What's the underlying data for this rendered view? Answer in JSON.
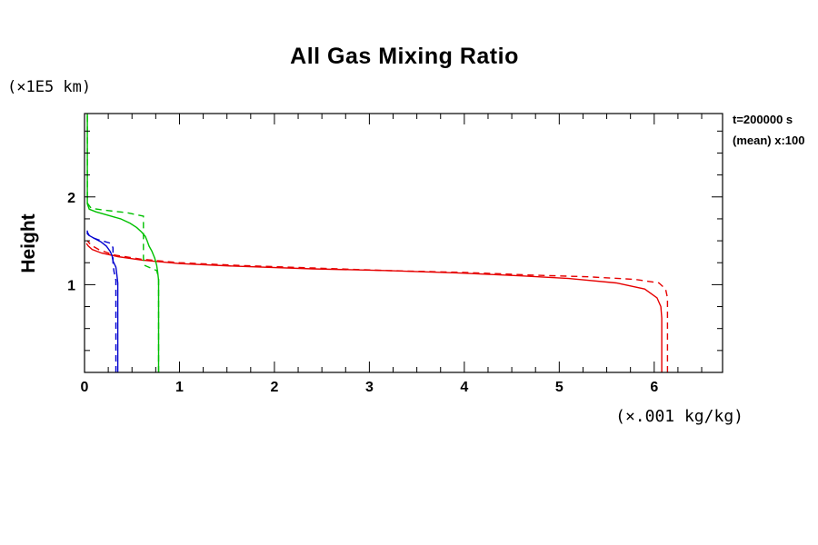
{
  "title": "All Gas Mixing Ratio",
  "annotations": {
    "time": "t=200000 s",
    "mean": "(mean) x:100"
  },
  "y_axis": {
    "label": "Height",
    "unit": "(×1E5 km)"
  },
  "x_axis": {
    "unit": "(×.001 kg/kg)"
  },
  "chart_data": {
    "type": "line",
    "title": "All Gas Mixing Ratio",
    "xlabel": "(×.001 kg/kg)",
    "ylabel": "Height (×1E5 km)",
    "xlim": [
      0,
      6.72
    ],
    "ylim": [
      0,
      2.95
    ],
    "x_ticks": [
      0,
      1,
      2,
      3,
      4,
      5,
      6
    ],
    "y_ticks": [
      1,
      2
    ],
    "minor_tick_step": 0.25,
    "grid": false,
    "legend_position": "none",
    "colors": {
      "gas1": "#e60000",
      "gas2": "#00c000",
      "gas3": "#0000d0"
    },
    "series": [
      {
        "name": "gas1-red-solid",
        "color": "#e60000",
        "style": "solid",
        "points": [
          [
            6.08,
            0
          ],
          [
            6.08,
            0.62
          ],
          [
            6.07,
            0.75
          ],
          [
            6.03,
            0.85
          ],
          [
            5.9,
            0.95
          ],
          [
            5.6,
            1.02
          ],
          [
            5.1,
            1.07
          ],
          [
            4.6,
            1.1
          ],
          [
            4.0,
            1.13
          ],
          [
            3.2,
            1.16
          ],
          [
            2.4,
            1.18
          ],
          [
            1.6,
            1.21
          ],
          [
            1.0,
            1.24
          ],
          [
            0.6,
            1.28
          ],
          [
            0.35,
            1.32
          ],
          [
            0.18,
            1.36
          ],
          [
            0.08,
            1.4
          ],
          [
            0.04,
            1.44
          ],
          [
            0.02,
            1.47
          ]
        ]
      },
      {
        "name": "gas1-red-dashed",
        "color": "#e60000",
        "style": "dashed",
        "points": [
          [
            6.14,
            0
          ],
          [
            6.14,
            0.85
          ],
          [
            6.12,
            0.95
          ],
          [
            6.05,
            1.02
          ],
          [
            5.8,
            1.06
          ],
          [
            5.3,
            1.09
          ],
          [
            4.7,
            1.11
          ],
          [
            4.0,
            1.14
          ],
          [
            3.2,
            1.16
          ],
          [
            2.4,
            1.19
          ],
          [
            1.6,
            1.22
          ],
          [
            1.0,
            1.25
          ],
          [
            0.6,
            1.29
          ],
          [
            0.3,
            1.34
          ],
          [
            0.15,
            1.4
          ],
          [
            0.07,
            1.45
          ],
          [
            0.03,
            1.5
          ]
        ]
      },
      {
        "name": "gas2-green-solid",
        "color": "#00c000",
        "style": "solid",
        "points": [
          [
            0.78,
            0
          ],
          [
            0.78,
            1.05
          ],
          [
            0.77,
            1.15
          ],
          [
            0.76,
            1.22
          ],
          [
            0.74,
            1.3
          ],
          [
            0.71,
            1.38
          ],
          [
            0.68,
            1.44
          ],
          [
            0.66,
            1.5
          ],
          [
            0.64,
            1.55
          ],
          [
            0.6,
            1.6
          ],
          [
            0.55,
            1.65
          ],
          [
            0.48,
            1.7
          ],
          [
            0.38,
            1.75
          ],
          [
            0.25,
            1.79
          ],
          [
            0.12,
            1.83
          ],
          [
            0.05,
            1.86
          ],
          [
            0.03,
            1.92
          ],
          [
            0.03,
            2.95
          ]
        ]
      },
      {
        "name": "gas2-green-dashed",
        "color": "#00c000",
        "style": "dashed",
        "points": [
          [
            0.78,
            0
          ],
          [
            0.78,
            1.08
          ],
          [
            0.76,
            1.16
          ],
          [
            0.63,
            1.22
          ],
          [
            0.62,
            1.3
          ],
          [
            0.62,
            1.78
          ],
          [
            0.45,
            1.82
          ],
          [
            0.2,
            1.85
          ],
          [
            0.07,
            1.87
          ],
          [
            0.03,
            1.93
          ],
          [
            0.03,
            2.95
          ]
        ]
      },
      {
        "name": "gas3-blue-solid",
        "color": "#0000d0",
        "style": "solid",
        "points": [
          [
            0.35,
            0
          ],
          [
            0.35,
            1.02
          ],
          [
            0.34,
            1.12
          ],
          [
            0.33,
            1.2
          ],
          [
            0.3,
            1.27
          ],
          [
            0.29,
            1.33
          ],
          [
            0.27,
            1.38
          ],
          [
            0.23,
            1.44
          ],
          [
            0.17,
            1.49
          ],
          [
            0.1,
            1.53
          ],
          [
            0.05,
            1.56
          ],
          [
            0.03,
            1.6
          ]
        ]
      },
      {
        "name": "gas3-blue-dashed",
        "color": "#0000d0",
        "style": "dashed",
        "points": [
          [
            0.33,
            0
          ],
          [
            0.33,
            1.05
          ],
          [
            0.31,
            1.15
          ],
          [
            0.3,
            1.25
          ],
          [
            0.3,
            1.42
          ],
          [
            0.28,
            1.47
          ],
          [
            0.15,
            1.51
          ],
          [
            0.07,
            1.54
          ],
          [
            0.03,
            1.58
          ],
          [
            0.03,
            1.64
          ]
        ]
      }
    ]
  }
}
